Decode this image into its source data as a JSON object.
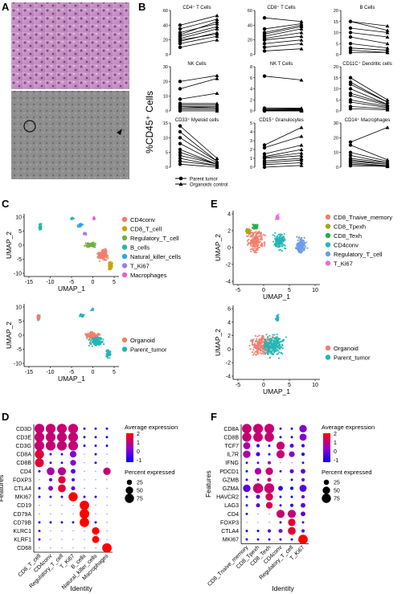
{
  "panel_letters": {
    "a": "A",
    "b": "B",
    "c": "C",
    "d": "D",
    "e": "E",
    "f": "F"
  },
  "colors": {
    "CD4conv": "#f07e6e",
    "CD8_T_cell": "#c8a300",
    "Regulatory_T_cell": "#6fb13c",
    "B_cells": "#1ebc9c",
    "Natural_killer_cells": "#2aa9e0",
    "T_Ki67": "#9b7fe6",
    "Macrophages": "#e262d2",
    "Organoid": "#f07e6e",
    "Parent_tumor": "#22b6b6",
    "E_CD8_Tnaive_memory": "#f07e6e",
    "E_CD8_Tpexh": "#a8a51c",
    "E_CD8_Texh": "#27ad4b",
    "E_CD4conv": "#22b6b6",
    "E_Regulatory_T_cell": "#6b9de8",
    "E_T_Ki67": "#ec6dd9",
    "dot_high": "#ff0000",
    "dot_low": "#0000ff",
    "dot_mid": "#9b00c8"
  },
  "panel_b": {
    "ylabel": "%CD45⁺ Cells",
    "legend_parent": "Parent tumor",
    "legend_organoid": "Organoids control",
    "chart_data": [
      {
        "type": "line",
        "title": "CD4⁺ T Cells",
        "ylim": [
          0,
          60
        ],
        "yticks": [
          "0",
          "20",
          "40",
          "60"
        ],
        "parent": [
          10,
          15,
          18,
          20,
          22,
          25,
          27,
          30,
          35,
          40
        ],
        "organoid": [
          20,
          25,
          30,
          28,
          35,
          38,
          45,
          42,
          48,
          53
        ]
      },
      {
        "type": "line",
        "title": "CD8⁺ T Cells",
        "ylim": [
          0,
          60
        ],
        "yticks": [
          "0",
          "20",
          "40",
          "60"
        ],
        "parent": [
          5,
          10,
          15,
          20,
          22,
          25,
          28,
          30,
          35,
          50
        ],
        "organoid": [
          8,
          15,
          20,
          25,
          30,
          35,
          38,
          40,
          42,
          45
        ]
      },
      {
        "type": "line",
        "title": "B Cells",
        "ylim": [
          0,
          20
        ],
        "yticks": [
          "0",
          "5",
          "10",
          "15",
          "20"
        ],
        "parent": [
          1,
          2,
          3,
          3,
          5,
          8,
          10,
          12,
          15,
          15
        ],
        "organoid": [
          1,
          1,
          2,
          2,
          3,
          5,
          8,
          10,
          11,
          13
        ]
      },
      {
        "type": "line",
        "title": "NK Cells",
        "ylim": [
          0,
          30
        ],
        "yticks": [
          "0",
          "10",
          "20",
          "30"
        ],
        "parent": [
          0,
          1,
          2,
          3,
          3,
          4,
          5,
          8,
          15,
          20
        ],
        "organoid": [
          0,
          1,
          2,
          2,
          3,
          4,
          5,
          12,
          22,
          24
        ]
      },
      {
        "type": "line",
        "title": "NK T Cells",
        "ylim": [
          0,
          8
        ],
        "yticks": [
          "0",
          "2",
          "4",
          "6",
          "8"
        ],
        "parent": [
          0,
          0,
          0.1,
          0.1,
          0.2,
          0.2,
          0.3,
          0.3,
          0.5,
          6.3
        ],
        "organoid": [
          0,
          0,
          0.1,
          0.1,
          0.2,
          0.2,
          0.3,
          0.4,
          0.5,
          5.6
        ]
      },
      {
        "type": "line",
        "title": "CD11C⁺ Dendritic cells",
        "ylim": [
          0,
          20
        ],
        "yticks": [
          "0",
          "5",
          "10",
          "15",
          "20"
        ],
        "parent": [
          1,
          2,
          4,
          5,
          7,
          8,
          10,
          12,
          13,
          15
        ],
        "organoid": [
          0.5,
          1,
          1.5,
          2,
          2.5,
          3,
          3,
          4,
          4,
          5
        ]
      },
      {
        "type": "line",
        "title": "CD33⁺ Myeloid cells",
        "ylim": [
          0,
          15
        ],
        "yticks": [
          "0",
          "5",
          "10",
          "15"
        ],
        "parent": [
          1,
          2,
          3,
          4,
          5,
          6,
          8,
          10,
          12,
          14
        ],
        "organoid": [
          0,
          0.5,
          0.5,
          1,
          1,
          1,
          1.5,
          2,
          2,
          3
        ]
      },
      {
        "type": "line",
        "title": "CD15⁺ Granulocytes",
        "ylim": [
          0,
          5
        ],
        "yticks": [
          "0",
          "1",
          "2",
          "3",
          "4",
          "5"
        ],
        "parent": [
          0,
          0.3,
          0.5,
          0.7,
          1,
          1.1,
          1.2,
          1.5,
          2.2,
          2.5
        ],
        "organoid": [
          0.2,
          0.5,
          0.8,
          1,
          1.3,
          1.6,
          2,
          2.5,
          3.5,
          4.5
        ]
      },
      {
        "type": "line",
        "title": "CD14⁺ Macrophages",
        "ylim": [
          0,
          30
        ],
        "yticks": [
          "0",
          "10",
          "20",
          "30"
        ],
        "parent": [
          1,
          2,
          3,
          4,
          5,
          6,
          8,
          10,
          15,
          17
        ],
        "organoid": [
          0.5,
          1,
          1,
          2,
          2,
          3,
          3,
          4,
          5,
          27
        ]
      }
    ]
  },
  "panel_c": {
    "chart_data": [
      {
        "type": "scatter",
        "xlabel": "UMAP_1",
        "ylabel": "UMAP_2",
        "xticks": [
          "-15",
          "-10",
          "-5",
          "0",
          "5"
        ],
        "yticks": [
          "10",
          "5",
          "0",
          "-5",
          "-10"
        ],
        "legend": [
          "CD4conv",
          "CD8_T_cell",
          "Regulatory_T_cell",
          "B_cells",
          "Natural_killer_cells",
          "T_Ki67",
          "Macrophages"
        ]
      },
      {
        "type": "scatter",
        "xlabel": "UMAP_1",
        "ylabel": "UMAP_2",
        "xticks": [
          "-15",
          "-10",
          "-5",
          "0",
          "5"
        ],
        "yticks": [
          "10",
          "5",
          "0",
          "-5",
          "-10"
        ],
        "legend": [
          "Organoid",
          "Parent_tumor"
        ]
      }
    ]
  },
  "panel_e": {
    "chart_data": [
      {
        "type": "scatter",
        "xlabel": "UMAP_1",
        "ylabel": "UMAP_2",
        "xticks": [
          "-5",
          "0",
          "5",
          "10"
        ],
        "yticks": [
          "4",
          "2",
          "0",
          "-2",
          "-4"
        ],
        "legend": [
          "CD8_Tnaive_memory",
          "CD8_Tpexh",
          "CD8_Texh",
          "CD4conv",
          "Regulatory_T_cell",
          "T_Ki67"
        ]
      },
      {
        "type": "scatter",
        "xlabel": "UMAP_1",
        "ylabel": "UMAP_2",
        "xticks": [
          "-5",
          "0",
          "5",
          "10"
        ],
        "yticks": [
          "6",
          "4",
          "2",
          "0",
          "-2",
          "-4"
        ],
        "legend": [
          "Organoid",
          "Parent_tumor"
        ]
      }
    ]
  },
  "panel_d": {
    "chart_data": {
      "type": "heatmap",
      "xlabel": "Identity",
      "ylabel": "Features",
      "features": [
        "CD3D",
        "CD3E",
        "CD3G",
        "CD8A",
        "CD8B",
        "CD4",
        "FOXP3",
        "CTLA4",
        "MKI67",
        "CD19",
        "CD79A",
        "CD79B",
        "KLRC1",
        "KLRF1",
        "CD68"
      ],
      "identities": [
        "CD8_T_cell",
        "CD4conv",
        "Regulatory_T_cell",
        "T_Ki67",
        "B_cells",
        "Natural_killer_cells",
        "Macrophages"
      ],
      "pct": [
        [
          85,
          85,
          85,
          85,
          5,
          5,
          5
        ],
        [
          85,
          85,
          85,
          85,
          5,
          5,
          5
        ],
        [
          85,
          85,
          85,
          85,
          5,
          5,
          5
        ],
        [
          75,
          5,
          5,
          40,
          0,
          5,
          0
        ],
        [
          70,
          5,
          5,
          30,
          0,
          5,
          0
        ],
        [
          5,
          55,
          60,
          20,
          0,
          0,
          50
        ],
        [
          0,
          10,
          50,
          10,
          0,
          0,
          0
        ],
        [
          5,
          20,
          55,
          15,
          0,
          0,
          0
        ],
        [
          5,
          5,
          5,
          75,
          5,
          5,
          0
        ],
        [
          0,
          0,
          0,
          0,
          80,
          0,
          0
        ],
        [
          0,
          0,
          0,
          0,
          85,
          0,
          0
        ],
        [
          5,
          5,
          5,
          5,
          80,
          5,
          0
        ],
        [
          5,
          0,
          0,
          0,
          0,
          50,
          0
        ],
        [
          5,
          0,
          0,
          0,
          0,
          45,
          0
        ],
        [
          0,
          0,
          0,
          0,
          0,
          0,
          80
        ]
      ],
      "avg": [
        [
          1.5,
          1.5,
          1.5,
          1.5,
          -1,
          -0.5,
          -1
        ],
        [
          1.5,
          1.5,
          1.5,
          1.5,
          -1,
          -0.5,
          -1
        ],
        [
          1.5,
          1.5,
          1.5,
          1.5,
          -1,
          -0.5,
          -1
        ],
        [
          2,
          -0.5,
          -0.5,
          0.5,
          -1,
          -0.5,
          -1
        ],
        [
          2,
          -0.5,
          -0.5,
          0.5,
          -1,
          -0.5,
          -1
        ],
        [
          -1,
          1,
          1.2,
          0,
          -1,
          -1,
          1.5
        ],
        [
          -1,
          0,
          2,
          0,
          -1,
          -1,
          -1
        ],
        [
          -1,
          0.5,
          2,
          0,
          -1,
          -1,
          -1
        ],
        [
          -0.5,
          -0.5,
          -0.5,
          2.5,
          -0.5,
          -0.5,
          -1
        ],
        [
          -1,
          -1,
          -1,
          -1,
          2.5,
          -1,
          -1
        ],
        [
          -1,
          -1,
          -1,
          -1,
          2.5,
          -1,
          -1
        ],
        [
          -0.5,
          -0.5,
          -0.5,
          -0.5,
          2.5,
          -0.5,
          -1
        ],
        [
          0,
          -1,
          -1,
          -1,
          -1,
          2.5,
          -1
        ],
        [
          0,
          -1,
          -1,
          -1,
          -1,
          2.5,
          -1
        ],
        [
          -1,
          -1,
          -1,
          -1,
          -1,
          -1,
          2.5
        ]
      ],
      "color_legend_title": "Average expression",
      "color_ticks": [
        "2",
        "1",
        "0",
        "-1"
      ],
      "size_legend_title": "Percent expressed",
      "size_ticks": [
        "25",
        "50",
        "75"
      ]
    }
  },
  "panel_f": {
    "chart_data": {
      "type": "heatmap",
      "xlabel": "Identity",
      "ylabel": "Features",
      "features": [
        "CD8A",
        "CD8B",
        "TCF7",
        "IL7R",
        "IFNG",
        "PDCD1",
        "GZMB",
        "GZMA",
        "HAVCR2",
        "LAG3",
        "CD4",
        "FOXP3",
        "CTLA4",
        "MKI67"
      ],
      "identities": [
        "CD8_Tnaive_memory",
        "CD8_Tpexh",
        "CD8_Texh",
        "CD4conv",
        "Regulatory_T_cell",
        "T_Ki67"
      ],
      "pct": [
        [
          80,
          85,
          85,
          5,
          5,
          50
        ],
        [
          75,
          80,
          80,
          5,
          5,
          45
        ],
        [
          45,
          10,
          5,
          60,
          15,
          10
        ],
        [
          50,
          15,
          5,
          60,
          30,
          10
        ],
        [
          5,
          5,
          10,
          0,
          0,
          5
        ],
        [
          5,
          40,
          50,
          5,
          15,
          20
        ],
        [
          5,
          5,
          15,
          0,
          5,
          10
        ],
        [
          50,
          90,
          90,
          20,
          10,
          45
        ],
        [
          5,
          15,
          50,
          5,
          5,
          10
        ],
        [
          5,
          15,
          40,
          5,
          10,
          20
        ],
        [
          5,
          0,
          0,
          60,
          60,
          20
        ],
        [
          0,
          0,
          0,
          5,
          50,
          5
        ],
        [
          5,
          5,
          10,
          15,
          55,
          10
        ],
        [
          5,
          5,
          5,
          5,
          5,
          80
        ]
      ],
      "avg": [
        [
          1.5,
          1.5,
          1.5,
          -1,
          -1,
          0.5
        ],
        [
          1.5,
          1.5,
          1.5,
          -1,
          -1,
          0.5
        ],
        [
          1,
          -0.5,
          -1,
          1.5,
          0,
          -0.5
        ],
        [
          1,
          -0.5,
          -1,
          1.5,
          0.5,
          -0.5
        ],
        [
          -0.5,
          0,
          1,
          -1,
          -1,
          -0.5
        ],
        [
          -1,
          1,
          1.5,
          -0.5,
          0,
          0
        ],
        [
          -1,
          0,
          1.5,
          -1,
          -1,
          0
        ],
        [
          0,
          1.5,
          1.5,
          -0.5,
          -1,
          0
        ],
        [
          -1,
          0,
          1.8,
          -1,
          -1,
          0
        ],
        [
          -1,
          0,
          1.8,
          -1,
          -0.5,
          0
        ],
        [
          -1,
          -1,
          -1,
          1.5,
          1.5,
          0
        ],
        [
          -1,
          -1,
          -1,
          -0.5,
          2,
          -0.5
        ],
        [
          -1,
          -1,
          0,
          0.5,
          2,
          0
        ],
        [
          -0.5,
          -0.5,
          -0.5,
          -0.5,
          -0.5,
          2.5
        ]
      ],
      "color_legend_title": "Average expression",
      "color_ticks": [
        "2",
        "1",
        "0",
        "-1"
      ],
      "size_legend_title": "Percent expressed",
      "size_ticks": [
        "25",
        "50",
        "75"
      ]
    }
  }
}
